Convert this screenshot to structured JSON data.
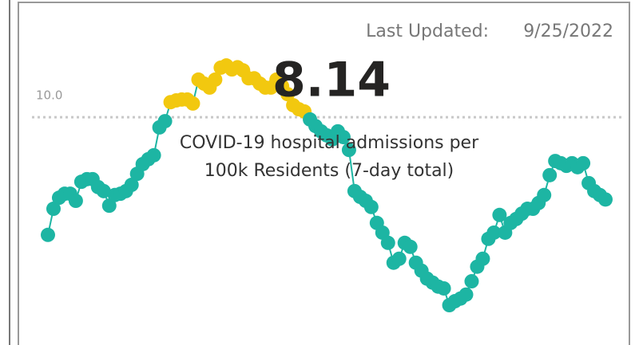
{
  "chart_data": {
    "type": "line",
    "title": 8.14,
    "subtitle_lines": [
      "COVID-19 hospital admissions per",
      "100k Residents (7-day total)"
    ],
    "last_updated_label": "Last Updated:",
    "last_updated": "9/25/2022",
    "reference_line": {
      "value": 10,
      "label": "10.0"
    },
    "color": "#1db5a3",
    "highlight_color": "#f2c80f",
    "ylim": [
      4.85,
      12.65
    ],
    "values": [
      7.34,
      7.93,
      8.18,
      8.27,
      8.27,
      8.11,
      8.54,
      8.6,
      8.6,
      8.42,
      8.33,
      8.0,
      8.24,
      8.27,
      8.33,
      8.47,
      8.72,
      8.94,
      9.05,
      9.14,
      9.77,
      9.91,
      10.34,
      10.38,
      10.4,
      10.4,
      10.31,
      10.85,
      10.76,
      10.67,
      10.85,
      11.12,
      11.17,
      11.08,
      11.13,
      11.06,
      10.88,
      10.88,
      10.76,
      10.67,
      10.67,
      10.85,
      10.7,
      10.52,
      10.27,
      10.18,
      10.13,
      9.95,
      9.8,
      9.68,
      9.59,
      9.5,
      9.68,
      9.55,
      9.26,
      8.33,
      8.2,
      8.11,
      7.97,
      7.61,
      7.39,
      7.16,
      6.71,
      6.8,
      7.16,
      7.07,
      6.71,
      6.53,
      6.35,
      6.26,
      6.17,
      6.13,
      5.75,
      5.84,
      5.9,
      5.99,
      6.29,
      6.62,
      6.8,
      7.25,
      7.39,
      7.79,
      7.39,
      7.61,
      7.7,
      7.82,
      7.93,
      7.93,
      8.06,
      8.24,
      8.69,
      9.01,
      8.96,
      8.9,
      8.96,
      8.87,
      8.96,
      8.51,
      8.33,
      8.24,
      8.14
    ]
  }
}
